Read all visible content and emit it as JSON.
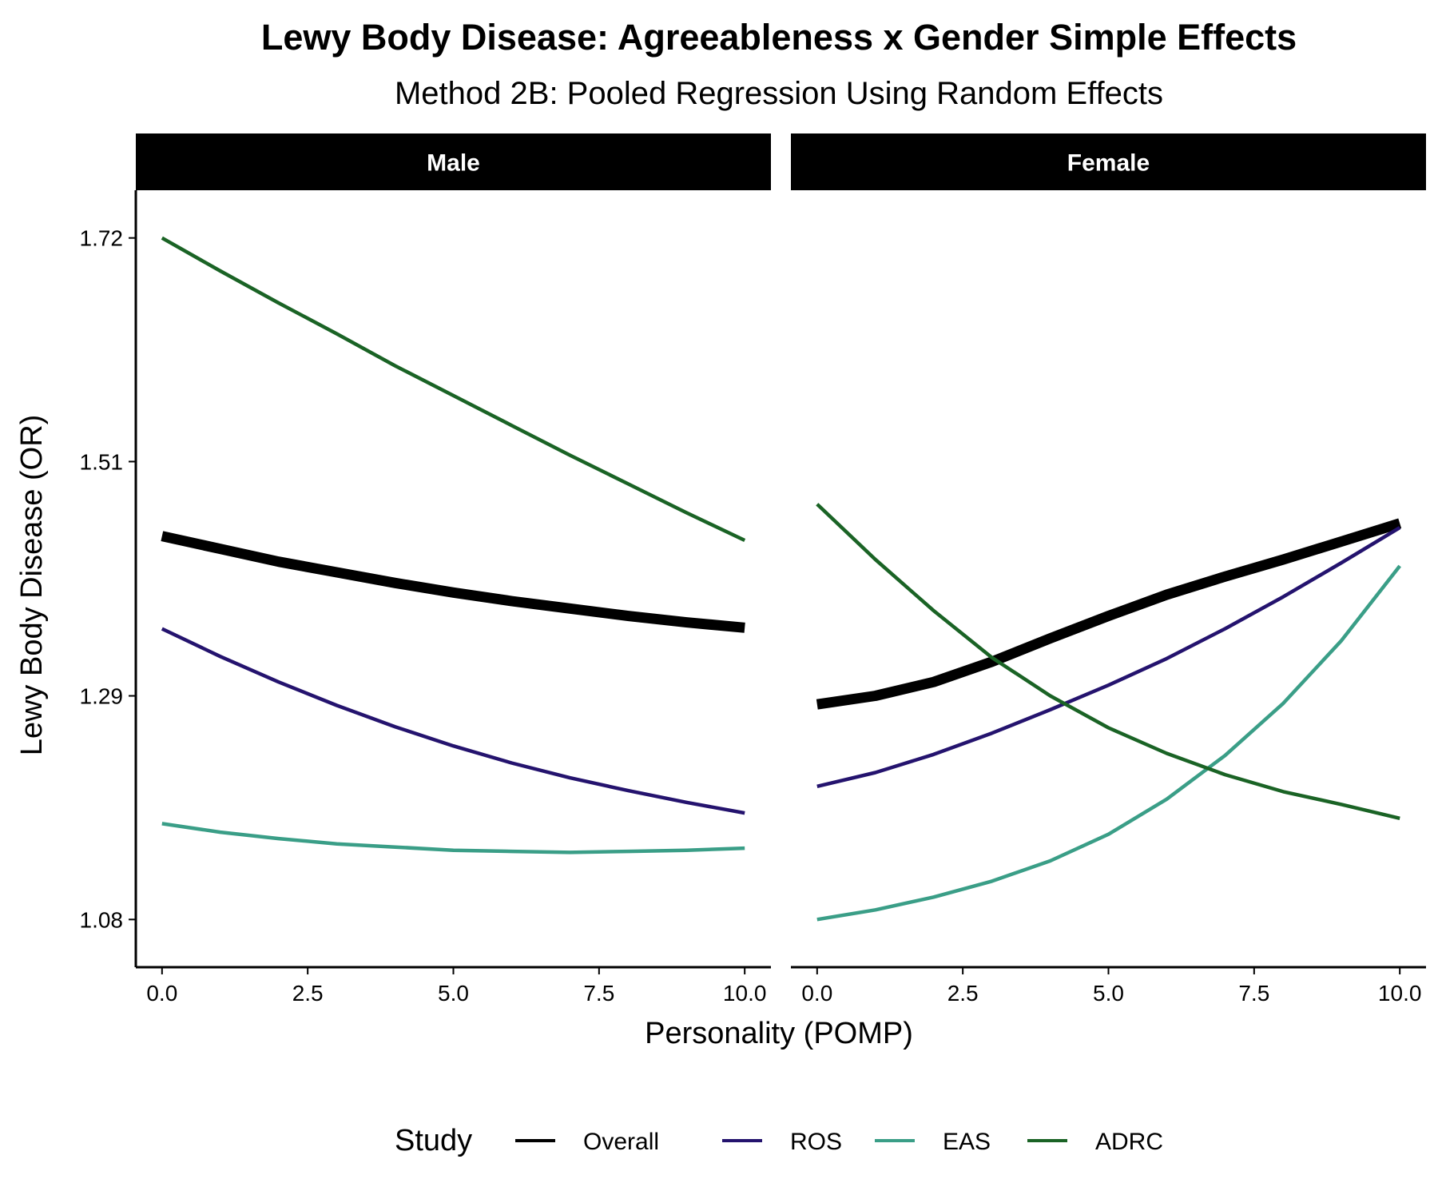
{
  "chart_data": {
    "type": "line",
    "title": "Lewy Body Disease: Agreeableness x Gender Simple Effects",
    "subtitle": "Method 2B: Pooled Regression Using Random Effects",
    "xlabel": "Personality (POMP)",
    "ylabel": "Lewy Body Disease (OR)",
    "xlim": [
      0,
      10
    ],
    "ylim": [
      1.08,
      1.72
    ],
    "x_ticks": [
      "0.0",
      "2.5",
      "5.0",
      "7.5",
      "10.0"
    ],
    "y_ticks": [
      "1.08",
      "1.29",
      "1.51",
      "1.72"
    ],
    "grid": false,
    "legend_title": "Study",
    "legend_position": "bottom",
    "x": [
      0,
      1,
      2,
      3,
      4,
      5,
      6,
      7,
      8,
      9,
      10
    ],
    "panels": [
      {
        "label": "Male",
        "series": [
          {
            "name": "Overall",
            "color": "#000000",
            "weight": "thick",
            "values": [
              1.44,
              1.428,
              1.416,
              1.406,
              1.396,
              1.387,
              1.379,
              1.372,
              1.365,
              1.359,
              1.354
            ]
          },
          {
            "name": "ROS",
            "color": "#24136e",
            "weight": "normal",
            "values": [
              1.353,
              1.327,
              1.303,
              1.281,
              1.261,
              1.243,
              1.227,
              1.213,
              1.201,
              1.19,
              1.18
            ]
          },
          {
            "name": "EAS",
            "color": "#3a9e87",
            "weight": "normal",
            "values": [
              1.17,
              1.162,
              1.156,
              1.151,
              1.148,
              1.145,
              1.144,
              1.143,
              1.144,
              1.145,
              1.147
            ]
          },
          {
            "name": "ADRC",
            "color": "#1a6325",
            "weight": "normal",
            "values": [
              1.72,
              1.689,
              1.659,
              1.63,
              1.6,
              1.572,
              1.544,
              1.516,
              1.489,
              1.462,
              1.436
            ]
          }
        ]
      },
      {
        "label": "Female",
        "series": [
          {
            "name": "Overall",
            "color": "#000000",
            "weight": "thick",
            "values": [
              1.282,
              1.29,
              1.303,
              1.322,
              1.344,
              1.365,
              1.385,
              1.402,
              1.418,
              1.435,
              1.452
            ]
          },
          {
            "name": "ROS",
            "color": "#24136e",
            "weight": "normal",
            "values": [
              1.205,
              1.218,
              1.235,
              1.255,
              1.277,
              1.3,
              1.325,
              1.353,
              1.383,
              1.415,
              1.448
            ]
          },
          {
            "name": "EAS",
            "color": "#3a9e87",
            "weight": "normal",
            "values": [
              1.08,
              1.089,
              1.101,
              1.116,
              1.135,
              1.16,
              1.193,
              1.234,
              1.283,
              1.342,
              1.412
            ]
          },
          {
            "name": "ADRC",
            "color": "#1a6325",
            "weight": "normal",
            "values": [
              1.47,
              1.418,
              1.37,
              1.326,
              1.29,
              1.26,
              1.236,
              1.216,
              1.2,
              1.188,
              1.175
            ]
          }
        ]
      }
    ]
  }
}
